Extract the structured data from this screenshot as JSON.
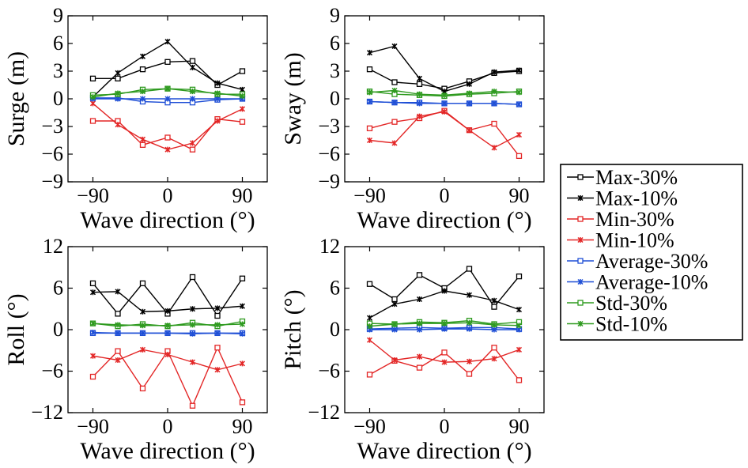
{
  "colors": {
    "Max-30%": "#000000",
    "Max-10%": "#000000",
    "Min-30%": "#e32626",
    "Min-10%": "#e32626",
    "Average-30%": "#1f4fd6",
    "Average-10%": "#1f4fd6",
    "Std-30%": "#2e9a1f",
    "Std-10%": "#2e9a1f"
  },
  "legend": {
    "placement": "right",
    "entries": [
      {
        "label": "Max-30%",
        "marker": "square"
      },
      {
        "label": "Max-10%",
        "marker": "cross"
      },
      {
        "label": "Min-30%",
        "marker": "square"
      },
      {
        "label": "Min-10%",
        "marker": "cross"
      },
      {
        "label": "Average-30%",
        "marker": "square"
      },
      {
        "label": "Average-10%",
        "marker": "cross"
      },
      {
        "label": "Std-30%",
        "marker": "square"
      },
      {
        "label": "Std-10%",
        "marker": "cross"
      }
    ]
  },
  "chart_data": [
    {
      "type": "line",
      "ylabel": "Surge (m)",
      "xlabel": "Wave direction (°)",
      "xlim": [
        -120,
        120
      ],
      "ylim": [
        -9,
        9
      ],
      "xticks": [
        -90,
        0,
        90
      ],
      "yticks": [
        -9,
        -6,
        -3,
        0,
        3,
        6,
        9
      ],
      "x": [
        -90,
        -60,
        -30,
        0,
        30,
        60,
        90
      ],
      "series": [
        {
          "name": "Max-30%",
          "values": [
            2.2,
            2.2,
            3.2,
            4.0,
            4.1,
            1.5,
            3.0
          ]
        },
        {
          "name": "Max-10%",
          "values": [
            0.2,
            2.8,
            4.6,
            6.2,
            3.4,
            1.7,
            1.0
          ]
        },
        {
          "name": "Min-30%",
          "values": [
            -2.4,
            -2.4,
            -5.0,
            -4.2,
            -5.5,
            -2.2,
            -2.5
          ]
        },
        {
          "name": "Min-10%",
          "values": [
            -0.5,
            -2.8,
            -4.4,
            -5.5,
            -4.8,
            -2.4,
            -1.1
          ]
        },
        {
          "name": "Average-30%",
          "values": [
            0.1,
            0.1,
            -0.3,
            -0.4,
            -0.4,
            -0.1,
            0.0
          ]
        },
        {
          "name": "Average-10%",
          "values": [
            0.0,
            0.0,
            0.0,
            0.0,
            0.0,
            0.0,
            0.0
          ]
        },
        {
          "name": "Std-30%",
          "values": [
            0.4,
            0.5,
            1.0,
            1.1,
            1.0,
            0.5,
            0.5
          ]
        },
        {
          "name": "Std-10%",
          "values": [
            0.2,
            0.6,
            0.8,
            1.1,
            0.8,
            0.6,
            0.3
          ]
        }
      ]
    },
    {
      "type": "line",
      "ylabel": "Sway (m)",
      "xlabel": "Wave direction (°)",
      "xlim": [
        -120,
        120
      ],
      "ylim": [
        -9,
        9
      ],
      "xticks": [
        -90,
        0,
        90
      ],
      "yticks": [
        -9,
        -6,
        -3,
        0,
        3,
        6,
        9
      ],
      "x": [
        -90,
        -60,
        -30,
        0,
        30,
        60,
        90
      ],
      "series": [
        {
          "name": "Max-30%",
          "values": [
            3.2,
            1.8,
            1.6,
            1.1,
            1.9,
            2.8,
            3.0
          ]
        },
        {
          "name": "Max-10%",
          "values": [
            5.0,
            5.7,
            2.2,
            0.8,
            1.6,
            2.9,
            3.1
          ]
        },
        {
          "name": "Min-30%",
          "values": [
            -3.2,
            -2.5,
            -2.1,
            -1.3,
            -3.4,
            -2.7,
            -6.2
          ]
        },
        {
          "name": "Min-10%",
          "values": [
            -4.5,
            -4.8,
            -1.9,
            -1.4,
            -3.4,
            -5.3,
            -3.9
          ]
        },
        {
          "name": "Average-30%",
          "values": [
            -0.3,
            -0.4,
            -0.4,
            -0.5,
            -0.5,
            -0.5,
            -0.6
          ]
        },
        {
          "name": "Average-10%",
          "values": [
            -0.3,
            -0.4,
            -0.5,
            -0.5,
            -0.5,
            -0.5,
            -0.6
          ]
        },
        {
          "name": "Std-30%",
          "values": [
            0.8,
            0.5,
            0.4,
            0.3,
            0.5,
            0.6,
            0.8
          ]
        },
        {
          "name": "Std-10%",
          "values": [
            0.7,
            0.9,
            0.5,
            0.4,
            0.6,
            0.8,
            0.7
          ]
        }
      ]
    },
    {
      "type": "line",
      "ylabel": "Roll (°)",
      "xlabel": "Wave direction (°)",
      "xlim": [
        -120,
        120
      ],
      "ylim": [
        -12,
        12
      ],
      "xticks": [
        -90,
        0,
        90
      ],
      "yticks": [
        -12,
        -6,
        0,
        6,
        12
      ],
      "x": [
        -90,
        -60,
        -30,
        0,
        30,
        60,
        90
      ],
      "series": [
        {
          "name": "Max-30%",
          "values": [
            6.7,
            2.3,
            6.7,
            2.3,
            7.6,
            2.0,
            7.4
          ]
        },
        {
          "name": "Max-10%",
          "values": [
            5.4,
            5.5,
            2.6,
            2.7,
            3.0,
            3.1,
            3.4
          ]
        },
        {
          "name": "Min-30%",
          "values": [
            -6.8,
            -3.1,
            -8.5,
            -3.1,
            -11.0,
            -2.6,
            -10.5
          ]
        },
        {
          "name": "Min-10%",
          "values": [
            -3.8,
            -4.4,
            -2.9,
            -3.6,
            -4.7,
            -5.8,
            -4.9
          ]
        },
        {
          "name": "Average-30%",
          "values": [
            -0.5,
            -0.5,
            -0.5,
            -0.5,
            -0.5,
            -0.5,
            -0.5
          ]
        },
        {
          "name": "Average-10%",
          "values": [
            -0.4,
            -0.5,
            -0.5,
            -0.5,
            -0.6,
            -0.5,
            -0.6
          ]
        },
        {
          "name": "Std-30%",
          "values": [
            0.9,
            0.5,
            0.8,
            0.5,
            1.0,
            0.5,
            1.2
          ]
        },
        {
          "name": "Std-10%",
          "values": [
            0.9,
            0.7,
            0.6,
            0.6,
            0.7,
            0.7,
            0.8
          ]
        }
      ]
    },
    {
      "type": "line",
      "ylabel": "Pitch (°)",
      "xlabel": "Wave direction (°)",
      "xlim": [
        -120,
        120
      ],
      "ylim": [
        -12,
        12
      ],
      "xticks": [
        -90,
        0,
        90
      ],
      "yticks": [
        -12,
        -6,
        0,
        6,
        12
      ],
      "x": [
        -90,
        -60,
        -30,
        0,
        30,
        60,
        90
      ],
      "series": [
        {
          "name": "Max-30%",
          "values": [
            6.6,
            4.4,
            7.9,
            6.0,
            8.8,
            3.3,
            7.7
          ]
        },
        {
          "name": "Max-10%",
          "values": [
            1.7,
            3.7,
            4.4,
            5.6,
            5.0,
            4.2,
            2.9
          ]
        },
        {
          "name": "Min-30%",
          "values": [
            -6.5,
            -4.5,
            -5.5,
            -3.3,
            -6.4,
            -2.6,
            -7.3
          ]
        },
        {
          "name": "Min-10%",
          "values": [
            -1.5,
            -4.4,
            -3.9,
            -4.7,
            -4.6,
            -4.2,
            -2.9
          ]
        },
        {
          "name": "Average-30%",
          "values": [
            0.1,
            0.2,
            0.3,
            0.2,
            0.3,
            0.3,
            0.1
          ]
        },
        {
          "name": "Average-10%",
          "values": [
            0.0,
            0.0,
            0.0,
            0.1,
            0.1,
            0.0,
            0.0
          ]
        },
        {
          "name": "Std-30%",
          "values": [
            0.9,
            0.8,
            1.1,
            1.0,
            1.3,
            0.8,
            1.1
          ]
        },
        {
          "name": "Std-10%",
          "values": [
            0.5,
            0.8,
            0.9,
            0.9,
            1.0,
            0.7,
            0.6
          ]
        }
      ]
    }
  ]
}
